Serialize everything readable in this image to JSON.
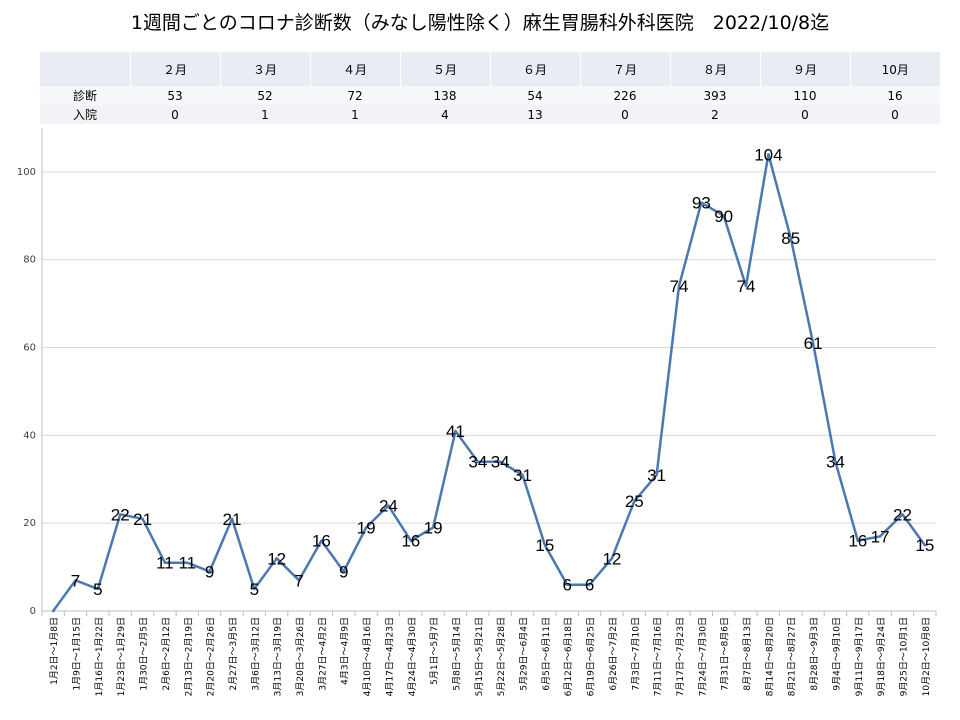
{
  "title": "1週間ごとのコロナ診断数（みなし陽性除く）麻生胃腸科外科医院　2022/10/8迄",
  "summary_table": {
    "months": [
      "２月",
      "３月",
      "４月",
      "５月",
      "６月",
      "７月",
      "８月",
      "９月",
      "10月"
    ],
    "rows": [
      {
        "label": "診断",
        "values": [
          "53",
          "52",
          "72",
          "138",
          "54",
          "226",
          "393",
          "110",
          "16"
        ]
      },
      {
        "label": "入院",
        "values": [
          "0",
          "1",
          "1",
          "4",
          "13",
          "0",
          "2",
          "0",
          "0"
        ]
      }
    ]
  },
  "colors": {
    "line": "#4a78b0",
    "grid": "#d9d9d9",
    "axis": "#bfbfbf"
  },
  "chart_data": {
    "type": "line",
    "title": "1週間ごとのコロナ診断数（みなし陽性除く）麻生胃腸科外科医院　2022/10/8迄",
    "xlabel": "",
    "ylabel": "",
    "ylim": [
      0,
      110
    ],
    "yticks": [
      0,
      20,
      40,
      60,
      80,
      100
    ],
    "grid": true,
    "categories": [
      "1月2日～1月8日",
      "1月9日～1月15日",
      "1月16日～1月22日",
      "1月23日～1月29日",
      "1月30日～2月5日",
      "2月6日～2月12日",
      "2月13日～2月19日",
      "2月20日～2月26日",
      "2月27日～3月5日",
      "3月6日～3月12日",
      "3月13日～3月19日",
      "3月20日～3月26日",
      "3月27日～4月2日",
      "4月3日～4月9日",
      "4月10日～4月16日",
      "4月17日～4月23日",
      "4月24日～4月30日",
      "5月1日～5月7日",
      "5月8日～5月14日",
      "5月15日～5月21日",
      "5月22日～5月28日",
      "5月29日～6月4日",
      "6月5日～6月11日",
      "6月12日～6月18日",
      "6月19日～6月25日",
      "6月26日～7月2日",
      "7月3日～7月10日",
      "7月11日～7月16日",
      "7月17日～7月23日",
      "7月24日～7月30日",
      "7月31日～8月6日",
      "8月7日～8月13日",
      "8月14日～8月20日",
      "8月21日～8月27日",
      "8月28日～9月3日",
      "9月4日～9月10日",
      "9月11日～9月17日",
      "9月18日～9月24日",
      "9月25日～10月1日",
      "10月2日～10月8日"
    ],
    "series": [
      {
        "values": [
          0,
          7,
          5,
          22,
          21,
          11,
          11,
          9,
          21,
          5,
          12,
          7,
          16,
          9,
          19,
          24,
          16,
          19,
          41,
          34,
          34,
          31,
          15,
          6,
          6,
          12,
          25,
          31,
          74,
          93,
          90,
          74,
          104,
          85,
          61,
          34,
          16,
          17,
          22,
          15
        ]
      }
    ],
    "data_labels": [
      "",
      "7",
      "5",
      "22",
      "21",
      "11",
      "11",
      "9",
      "21",
      "5",
      "12",
      "7",
      "16",
      "9",
      "19",
      "24",
      "16",
      "19",
      "41",
      "34",
      "34",
      "31",
      "15",
      "6",
      "6",
      "12",
      "25",
      "31",
      "74",
      "93",
      "90",
      "74",
      "104",
      "85",
      "61",
      "34",
      "16",
      "17",
      "22",
      "15"
    ]
  }
}
